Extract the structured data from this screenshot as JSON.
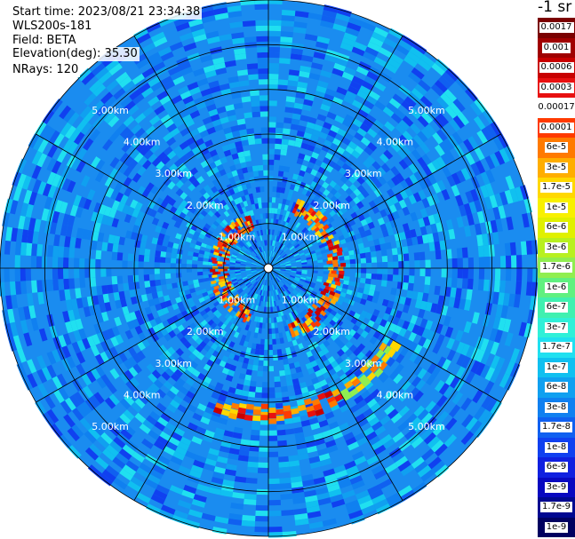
{
  "info": {
    "start_time": "Start time: 2023/08/21 23:34:38",
    "instrument": "WLS200s-181",
    "field": "Field: BETA",
    "elevation": "Elevation(deg): 35.30",
    "nrays": "NRays: 120"
  },
  "legend": {
    "title": "-1 sr",
    "items": [
      {
        "label": "0.0017",
        "color": "#7a0000"
      },
      {
        "label": "0.001",
        "color": "#a00000"
      },
      {
        "label": "0.0006",
        "color": "#c80000"
      },
      {
        "label": "0.0003",
        "color": "#e81010"
      },
      {
        "label": "0.00017",
        "color": "#ffffff"
      },
      {
        "label": "0.0001",
        "color": "#ff3a00"
      },
      {
        "label": "6e-5",
        "color": "#ff7a00"
      },
      {
        "label": "3e-5",
        "color": "#ffae00"
      },
      {
        "label": "1.7e-5",
        "color": "#ffd800"
      },
      {
        "label": "1e-5",
        "color": "#f8f000"
      },
      {
        "label": "6e-6",
        "color": "#e0f000"
      },
      {
        "label": "3e-6",
        "color": "#b8f020"
      },
      {
        "label": "1.7e-6",
        "color": "#90ee50"
      },
      {
        "label": "1e-6",
        "color": "#60f080"
      },
      {
        "label": "6e-7",
        "color": "#40f0b0"
      },
      {
        "label": "3e-7",
        "color": "#30f0d8"
      },
      {
        "label": "1.7e-7",
        "color": "#20e0f0"
      },
      {
        "label": "1e-7",
        "color": "#10c0f0"
      },
      {
        "label": "6e-8",
        "color": "#10a0f0"
      },
      {
        "label": "3e-8",
        "color": "#1080f0"
      },
      {
        "label": "1.7e-8",
        "color": "#1060f0"
      },
      {
        "label": "1e-8",
        "color": "#1040f0"
      },
      {
        "label": "6e-9",
        "color": "#1020e0"
      },
      {
        "label": "3e-9",
        "color": "#0808c0"
      },
      {
        "label": "1.7e-9",
        "color": "#000890"
      },
      {
        "label": "1e-9",
        "color": "#000060"
      }
    ]
  },
  "chart_data": {
    "type": "heatmap",
    "projection": "polar",
    "ring_labels": [
      "1.00km",
      "2.00km",
      "3.00km",
      "4.00km",
      "5.00km"
    ],
    "ring_ranges_km": [
      1,
      2,
      3,
      4,
      5
    ],
    "max_range_km": 6.0,
    "spokes": 12,
    "background_level": "blue (~3e-8 to 1e-7)",
    "aerosol_arcs": [
      {
        "range_km": 1.45,
        "from_deg": 20,
        "to_deg": 160,
        "level_note": "yellow-red"
      },
      {
        "range_km": 1.05,
        "from_deg": 200,
        "to_deg": 340,
        "level_note": "yellow-red"
      },
      {
        "range_km": 3.2,
        "from_deg": 150,
        "to_deg": 200,
        "level_note": "yellow-red"
      },
      {
        "range_km": 3.2,
        "from_deg": 120,
        "to_deg": 150,
        "level_note": "cyan-green"
      }
    ]
  }
}
